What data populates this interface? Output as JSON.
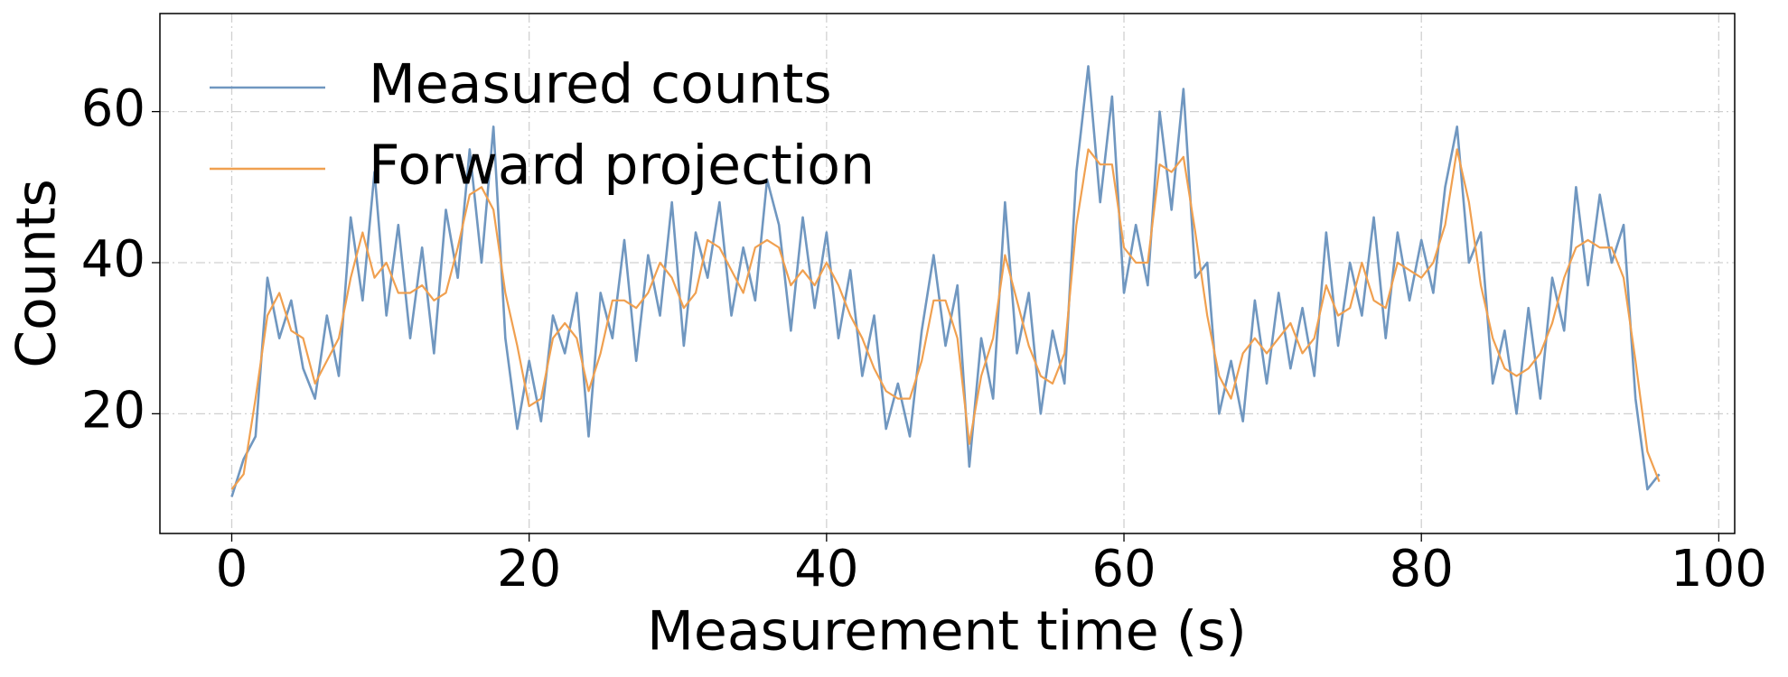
{
  "chart_data": {
    "type": "line",
    "xlabel": "Measurement time (s)",
    "ylabel": "Counts",
    "x": [
      0,
      0.8,
      1.6,
      2.4,
      3.2,
      4.0,
      4.8,
      5.6,
      6.4,
      7.2,
      8.0,
      8.8,
      9.6,
      10.4,
      11.2,
      12.0,
      12.8,
      13.6,
      14.4,
      15.2,
      16.0,
      16.8,
      17.6,
      18.4,
      19.2,
      20.0,
      20.8,
      21.6,
      22.4,
      23.2,
      24.0,
      24.8,
      25.6,
      26.4,
      27.2,
      28.0,
      28.8,
      29.6,
      30.4,
      31.2,
      32.0,
      32.8,
      33.6,
      34.4,
      35.2,
      36.0,
      36.8,
      37.6,
      38.4,
      39.2,
      40.0,
      40.8,
      41.6,
      42.4,
      43.2,
      44.0,
      44.8,
      45.6,
      46.4,
      47.2,
      48.0,
      48.8,
      49.6,
      50.4,
      51.2,
      52.0,
      52.8,
      53.6,
      54.4,
      55.2,
      56.0,
      56.8,
      57.6,
      58.4,
      59.2,
      60.0,
      60.8,
      61.6,
      62.4,
      63.2,
      64.0,
      64.8,
      65.6,
      66.4,
      67.2,
      68.0,
      68.8,
      69.6,
      70.4,
      71.2,
      72.0,
      72.8,
      73.6,
      74.4,
      75.2,
      76.0,
      76.8,
      77.6,
      78.4,
      79.2,
      80.0,
      80.8,
      81.6,
      82.4,
      83.2,
      84.0,
      84.8,
      85.6,
      86.4,
      87.2,
      88.0,
      88.8,
      89.6,
      90.4,
      91.2,
      92.0,
      92.8,
      93.6,
      94.4,
      95.2,
      96.0
    ],
    "series": [
      {
        "name": "Measured counts",
        "color": "#7097c0",
        "values": [
          9,
          14,
          17,
          38,
          30,
          35,
          26,
          22,
          33,
          25,
          46,
          35,
          52,
          33,
          45,
          30,
          42,
          28,
          47,
          38,
          55,
          40,
          58,
          30,
          18,
          27,
          19,
          33,
          28,
          36,
          17,
          36,
          30,
          43,
          27,
          41,
          33,
          48,
          29,
          44,
          38,
          48,
          33,
          42,
          35,
          51,
          45,
          31,
          46,
          34,
          44,
          30,
          39,
          25,
          33,
          18,
          24,
          17,
          31,
          41,
          29,
          37,
          13,
          30,
          22,
          48,
          28,
          36,
          20,
          31,
          24,
          52,
          66,
          48,
          62,
          36,
          45,
          37,
          60,
          47,
          63,
          38,
          40,
          20,
          27,
          19,
          35,
          24,
          36,
          26,
          34,
          25,
          44,
          29,
          40,
          33,
          46,
          30,
          44,
          35,
          43,
          36,
          50,
          58,
          40,
          44,
          24,
          31,
          20,
          34,
          22,
          38,
          31,
          50,
          37,
          49,
          40,
          45,
          22,
          10,
          12
        ]
      },
      {
        "name": "Forward projection",
        "color": "#f0a050",
        "values": [
          10,
          12,
          22,
          33,
          36,
          31,
          30,
          24,
          27,
          30,
          38,
          44,
          38,
          40,
          36,
          36,
          37,
          35,
          36,
          42,
          49,
          50,
          47,
          36,
          29,
          21,
          22,
          30,
          32,
          30,
          23,
          28,
          35,
          35,
          34,
          36,
          40,
          38,
          34,
          36,
          43,
          42,
          39,
          36,
          42,
          43,
          42,
          37,
          39,
          37,
          40,
          37,
          33,
          30,
          26,
          23,
          22,
          22,
          27,
          35,
          35,
          30,
          16,
          25,
          30,
          41,
          35,
          29,
          25,
          24,
          28,
          45,
          55,
          53,
          53,
          42,
          40,
          40,
          53,
          52,
          54,
          44,
          33,
          25,
          22,
          28,
          30,
          28,
          30,
          32,
          28,
          30,
          37,
          33,
          34,
          40,
          35,
          34,
          40,
          39,
          38,
          40,
          45,
          55,
          48,
          37,
          30,
          26,
          25,
          26,
          28,
          32,
          38,
          42,
          43,
          42,
          42,
          38,
          27,
          15,
          11
        ]
      }
    ],
    "xlim": [
      -4.83,
      101.07
    ],
    "ylim": [
      4.15,
      72.98
    ],
    "xticks": [
      0,
      20,
      40,
      60,
      80,
      100
    ],
    "yticks": [
      20,
      40,
      60
    ],
    "grid": true,
    "legend": "upper left"
  }
}
